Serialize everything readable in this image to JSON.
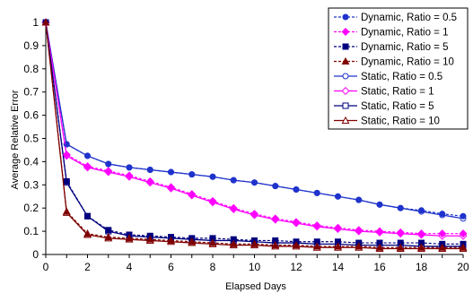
{
  "chart_data": {
    "type": "line",
    "title": "",
    "xlabel": "Elapsed Days",
    "ylabel": "Average Relative Error",
    "xlim": [
      0,
      20
    ],
    "ylim": [
      0,
      1
    ],
    "x_ticks": [
      "0",
      "2",
      "4",
      "6",
      "8",
      "10",
      "12",
      "14",
      "16",
      "18",
      "20"
    ],
    "y_ticks": [
      "0",
      "0.1",
      "0.2",
      "0.3",
      "0.4",
      "0.5",
      "0.6",
      "0.7",
      "0.8",
      "0.9",
      "1"
    ],
    "grid": false,
    "legend_position": "top-right",
    "x": [
      0,
      1,
      2,
      3,
      4,
      5,
      6,
      7,
      8,
      9,
      10,
      11,
      12,
      13,
      14,
      15,
      16,
      17,
      18,
      19,
      20
    ],
    "series": [
      {
        "name": "Dynamic, Ratio = 0.5",
        "color": "#1F33CC",
        "marker": "circle",
        "filled": true,
        "dashed": true,
        "values": [
          1.0,
          0.475,
          0.425,
          0.39,
          0.375,
          0.365,
          0.355,
          0.345,
          0.335,
          0.32,
          0.31,
          0.295,
          0.28,
          0.265,
          0.25,
          0.235,
          0.215,
          0.2,
          0.19,
          0.175,
          0.165
        ]
      },
      {
        "name": "Dynamic, Ratio = 1",
        "color": "#FF00FF",
        "marker": "diamond",
        "filled": true,
        "dashed": true,
        "values": [
          1.0,
          0.43,
          0.38,
          0.36,
          0.34,
          0.315,
          0.29,
          0.26,
          0.23,
          0.2,
          0.175,
          0.155,
          0.14,
          0.125,
          0.115,
          0.105,
          0.1,
          0.095,
          0.09,
          0.09,
          0.09
        ]
      },
      {
        "name": "Dynamic, Ratio = 5",
        "color": "#00007F",
        "marker": "square",
        "filled": true,
        "dashed": true,
        "values": [
          1.0,
          0.315,
          0.165,
          0.105,
          0.085,
          0.08,
          0.075,
          0.07,
          0.07,
          0.065,
          0.06,
          0.06,
          0.055,
          0.055,
          0.055,
          0.05,
          0.05,
          0.05,
          0.05,
          0.045,
          0.045
        ]
      },
      {
        "name": "Dynamic, Ratio = 10",
        "color": "#7F0000",
        "marker": "triangle",
        "filled": true,
        "dashed": true,
        "values": [
          1.0,
          0.185,
          0.09,
          0.075,
          0.07,
          0.065,
          0.06,
          0.055,
          0.05,
          0.045,
          0.045,
          0.04,
          0.04,
          0.035,
          0.035,
          0.035,
          0.03,
          0.03,
          0.03,
          0.03,
          0.03
        ]
      },
      {
        "name": "Static, Ratio = 0.5",
        "color": "#1F33CC",
        "marker": "circle",
        "filled": false,
        "dashed": false,
        "values": [
          1.0,
          0.475,
          0.425,
          0.39,
          0.375,
          0.365,
          0.355,
          0.345,
          0.335,
          0.32,
          0.31,
          0.295,
          0.28,
          0.265,
          0.25,
          0.235,
          0.215,
          0.2,
          0.185,
          0.17,
          0.155
        ]
      },
      {
        "name": "Static, Ratio = 1",
        "color": "#FF00FF",
        "marker": "diamond",
        "filled": false,
        "dashed": false,
        "values": [
          1.0,
          0.425,
          0.375,
          0.355,
          0.335,
          0.31,
          0.285,
          0.255,
          0.225,
          0.195,
          0.17,
          0.15,
          0.135,
          0.12,
          0.11,
          0.1,
          0.095,
          0.09,
          0.085,
          0.08,
          0.08
        ]
      },
      {
        "name": "Static, Ratio = 5",
        "color": "#00007F",
        "marker": "square",
        "filled": false,
        "dashed": false,
        "values": [
          1.0,
          0.31,
          0.165,
          0.1,
          0.08,
          0.075,
          0.07,
          0.065,
          0.06,
          0.06,
          0.055,
          0.05,
          0.05,
          0.045,
          0.045,
          0.04,
          0.04,
          0.04,
          0.035,
          0.035,
          0.035
        ]
      },
      {
        "name": "Static, Ratio = 10",
        "color": "#7F0000",
        "marker": "triangle",
        "filled": false,
        "dashed": false,
        "values": [
          1.0,
          0.18,
          0.085,
          0.07,
          0.065,
          0.06,
          0.055,
          0.05,
          0.045,
          0.04,
          0.04,
          0.035,
          0.035,
          0.03,
          0.03,
          0.03,
          0.025,
          0.025,
          0.025,
          0.025,
          0.025
        ]
      }
    ]
  }
}
